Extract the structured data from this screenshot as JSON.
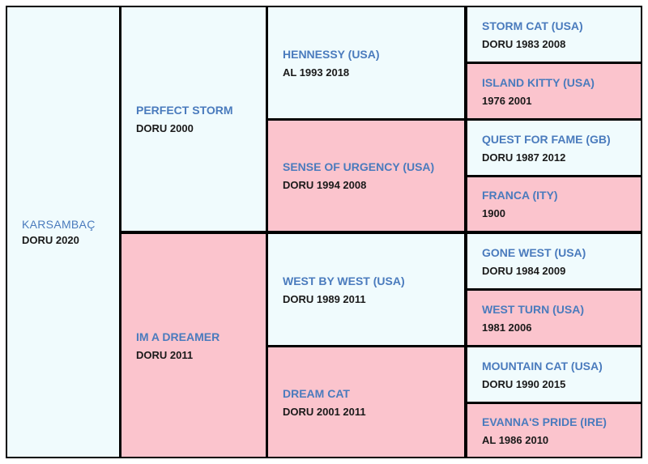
{
  "colors": {
    "male_bg": "#f0fbfd",
    "female_bg": "#fbc4cd",
    "name_text": "#4a7bbd",
    "info_text": "#1a1a1a",
    "border": "#000000"
  },
  "subject": {
    "name": "KARSAMBAÇ",
    "info": "DORU 2020"
  },
  "sire": {
    "name": "PERFECT STORM",
    "info": "DORU 2000"
  },
  "dam": {
    "name": "IM A DREAMER",
    "info": "DORU 2011"
  },
  "grandparents": [
    {
      "name": "HENNESSY (USA)",
      "info": "AL 1993 2018"
    },
    {
      "name": "SENSE OF URGENCY (USA)",
      "info": "DORU 1994 2008"
    },
    {
      "name": "WEST BY WEST (USA)",
      "info": "DORU 1989 2011"
    },
    {
      "name": "DREAM CAT",
      "info": "DORU 2001 2011"
    }
  ],
  "great_grandparents": [
    {
      "name": "STORM CAT (USA)",
      "info": "DORU 1983 2008"
    },
    {
      "name": "ISLAND KITTY (USA)",
      "info": "1976 2001"
    },
    {
      "name": "QUEST FOR FAME (GB)",
      "info": "DORU 1987 2012"
    },
    {
      "name": "FRANCA (ITY)",
      "info": "1900"
    },
    {
      "name": "GONE WEST (USA)",
      "info": "DORU 1984 2009"
    },
    {
      "name": "WEST TURN (USA)",
      "info": "1981 2006"
    },
    {
      "name": "MOUNTAIN CAT (USA)",
      "info": "DORU 1990 2015"
    },
    {
      "name": "EVANNA'S PRIDE (IRE)",
      "info": "AL 1986 2010"
    }
  ]
}
